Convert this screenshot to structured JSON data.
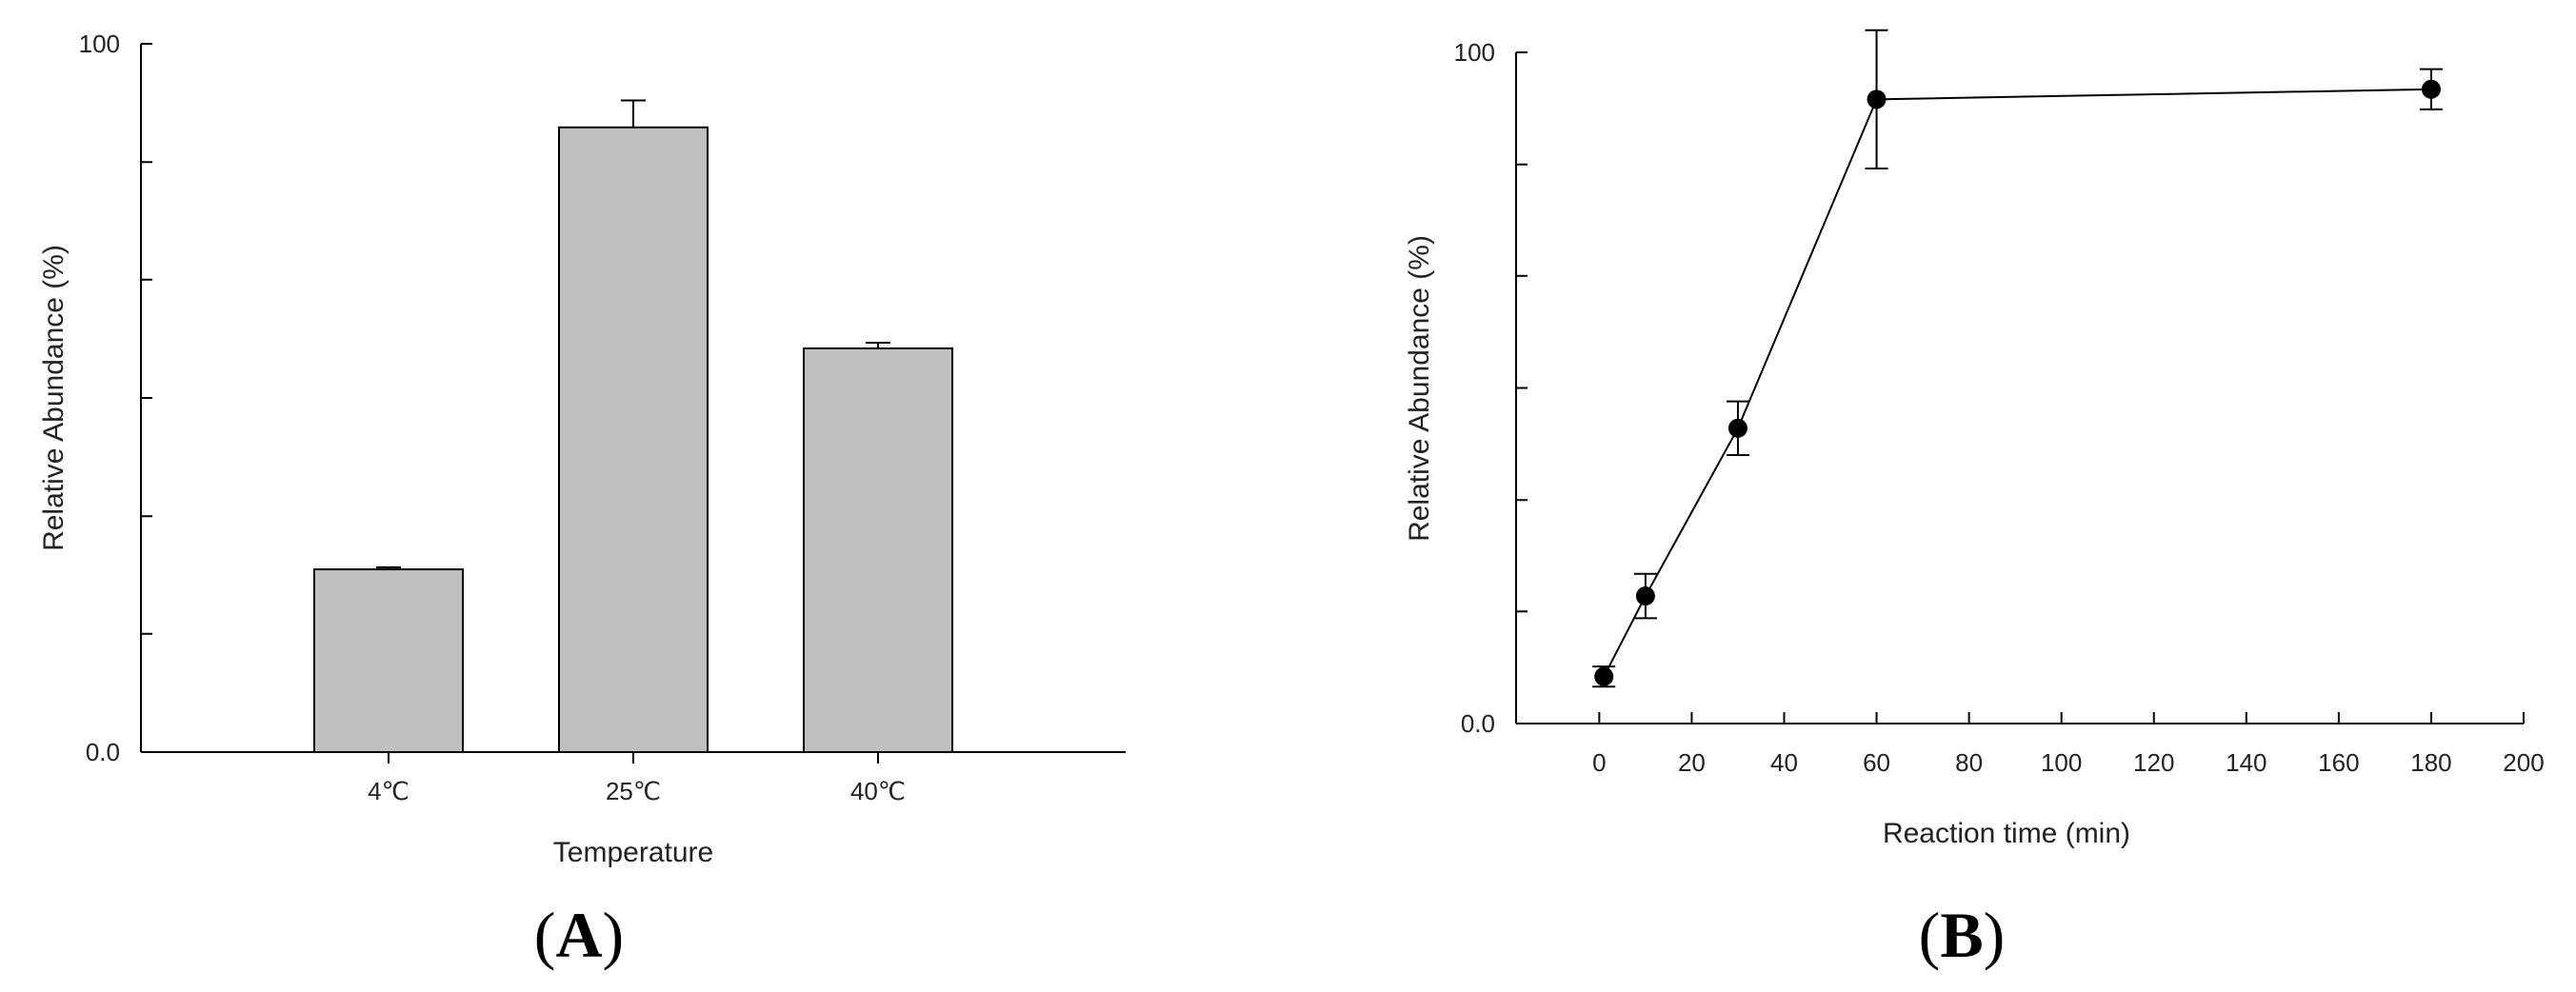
{
  "chart_data": [
    {
      "type": "bar",
      "panel_label_open": "(",
      "panel_label_letter": "A",
      "panel_label_close": ")",
      "xlabel": "Temperature",
      "ylabel": "Relative Abundance (%)",
      "categories": [
        "4℃",
        "25℃",
        "40℃"
      ],
      "values": [
        25.8,
        88.2,
        57.0
      ],
      "errors": [
        0.3,
        3.8,
        0.8
      ],
      "ylim": [
        0,
        100
      ],
      "yticks": [
        0,
        16.7,
        33.3,
        50,
        66.7,
        83.3,
        100
      ],
      "ytick_labels": [
        "0.0",
        "",
        "",
        "",
        "",
        "",
        "100"
      ],
      "bar_color": "#c0c0c0",
      "grid": false
    },
    {
      "type": "line",
      "panel_label_open": "(",
      "panel_label_letter": "B",
      "panel_label_close": ")",
      "xlabel": "Reaction time (min)",
      "ylabel": "Relative Abundance (%)",
      "x": [
        1,
        10,
        30,
        60,
        180
      ],
      "values": [
        7,
        19,
        44,
        93,
        94.5
      ],
      "errors": [
        1.5,
        3.3,
        4.0,
        10.3,
        3.0
      ],
      "xlim": [
        -18,
        200
      ],
      "xticks": [
        0,
        20,
        40,
        60,
        80,
        100,
        120,
        140,
        160,
        180,
        200
      ],
      "xtick_labels": [
        "0",
        "20",
        "40",
        "60",
        "80",
        "100",
        "120",
        "140",
        "160",
        "180",
        "200"
      ],
      "ylim": [
        0,
        100
      ],
      "yticks": [
        0,
        16.7,
        33.3,
        50,
        66.7,
        83.3,
        100
      ],
      "ytick_labels": [
        "0.0",
        "",
        "",
        "",
        "",
        "",
        "100"
      ],
      "marker": "circle",
      "color": "#000000",
      "grid": false
    }
  ]
}
